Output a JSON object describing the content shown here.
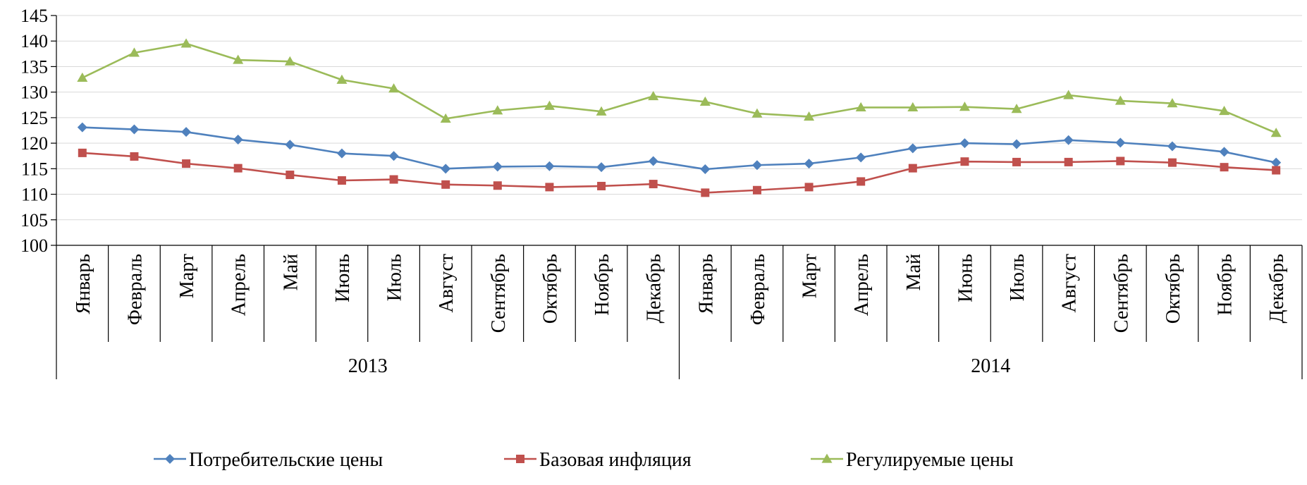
{
  "chart_data": {
    "type": "line",
    "ylim": [
      100,
      145
    ],
    "yticks": [
      100,
      105,
      110,
      115,
      120,
      125,
      130,
      135,
      140,
      145
    ],
    "grid": true,
    "legend_position": "bottom",
    "groups": [
      {
        "label": "2013",
        "months": [
          "Январь",
          "Февраль",
          "Март",
          "Апрель",
          "Май",
          "Июнь",
          "Июль",
          "Август",
          "Сентябрь",
          "Октябрь",
          "Ноябрь",
          "Декабрь"
        ]
      },
      {
        "label": "2014",
        "months": [
          "Январь",
          "Февраль",
          "Март",
          "Апрель",
          "Май",
          "Июнь",
          "Июль",
          "Август",
          "Сентябрь",
          "Октябрь",
          "Ноябрь",
          "Декабрь"
        ]
      }
    ],
    "series": [
      {
        "name": "Потребительские цены",
        "color": "#4F81BD",
        "marker": "diamond",
        "values": [
          123.1,
          122.7,
          122.2,
          120.7,
          119.7,
          118.0,
          117.5,
          115.0,
          115.4,
          115.5,
          115.3,
          116.5,
          114.9,
          115.7,
          116.0,
          117.2,
          119.0,
          120.0,
          119.8,
          120.6,
          120.1,
          119.4,
          118.3,
          116.2
        ]
      },
      {
        "name": "Базовая инфляция",
        "color": "#C0504D",
        "marker": "square",
        "values": [
          118.1,
          117.4,
          116.0,
          115.1,
          113.8,
          112.7,
          112.9,
          111.9,
          111.7,
          111.4,
          111.6,
          112.0,
          110.3,
          110.8,
          111.4,
          112.5,
          115.1,
          116.4,
          116.3,
          116.3,
          116.5,
          116.2,
          115.3,
          114.7
        ]
      },
      {
        "name": "Регулируемые цены",
        "color": "#9BBB59",
        "marker": "triangle",
        "values": [
          132.8,
          137.7,
          139.5,
          136.3,
          136.0,
          132.4,
          130.7,
          124.8,
          126.4,
          127.3,
          126.2,
          129.2,
          128.1,
          125.8,
          125.2,
          127.0,
          127.0,
          127.1,
          126.7,
          129.4,
          128.3,
          127.8,
          126.3,
          122.0
        ]
      }
    ]
  }
}
